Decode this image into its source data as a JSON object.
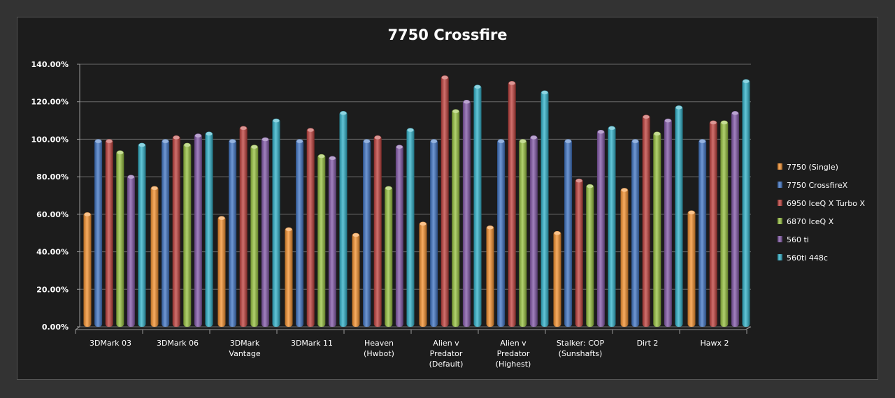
{
  "chart_data": {
    "type": "bar",
    "title": "7750 Crossfire",
    "xlabel": "",
    "ylabel": "",
    "ylim": [
      0,
      140
    ],
    "yticks": [
      "0.00%",
      "20.00%",
      "40.00%",
      "60.00%",
      "80.00%",
      "100.00%",
      "120.00%",
      "140.00%"
    ],
    "grid": true,
    "legend_position": "right",
    "categories": [
      [
        "3DMark 03"
      ],
      [
        "3DMark 06"
      ],
      [
        "3DMark",
        "Vantage"
      ],
      [
        "3DMark 11"
      ],
      [
        "Heaven",
        "(Hwbot)"
      ],
      [
        "Alien v",
        "Predator",
        "(Default)"
      ],
      [
        "Alien v",
        "Predator",
        "(Highest)"
      ],
      [
        "Stalker: COP",
        "(Sunshafts)"
      ],
      [
        "Dirt 2"
      ],
      [
        "Hawx 2"
      ]
    ],
    "series": [
      {
        "name": "7750 (Single)",
        "color": "#f5912e",
        "values": [
          61,
          75,
          59,
          53,
          50,
          56,
          54,
          51,
          74,
          62
        ]
      },
      {
        "name": "7750 CrossfireX",
        "color": "#3f74c4",
        "values": [
          100,
          100,
          100,
          100,
          100,
          100,
          100,
          100,
          100,
          100
        ]
      },
      {
        "name": "6950 IceQ X Turbo X",
        "color": "#c0403c",
        "values": [
          100,
          102,
          107,
          106,
          102,
          134,
          131,
          79,
          113,
          110
        ]
      },
      {
        "name": "6870 IceQ X",
        "color": "#97c23f",
        "values": [
          94,
          98,
          97,
          92,
          75,
          116,
          100,
          76,
          104,
          110
        ]
      },
      {
        "name": "560 ti",
        "color": "#8257a8",
        "values": [
          81,
          103,
          101,
          91,
          97,
          121,
          102,
          105,
          111,
          115
        ]
      },
      {
        "name": "560ti 448c",
        "color": "#2fb1c9",
        "values": [
          98,
          104,
          111,
          115,
          106,
          129,
          126,
          107,
          118,
          132
        ]
      }
    ]
  }
}
